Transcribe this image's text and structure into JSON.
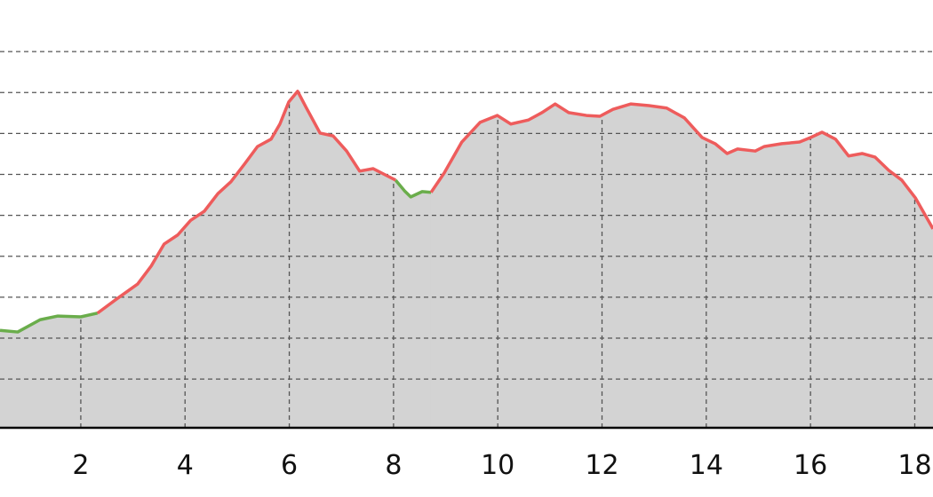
{
  "chart_data": {
    "type": "line",
    "x": [
      0.45,
      0.79,
      1.22,
      1.56,
      2.0,
      2.32,
      2.66,
      3.09,
      3.35,
      3.6,
      3.86,
      4.11,
      4.37,
      4.63,
      4.88,
      5.14,
      5.39,
      5.65,
      5.82,
      5.99,
      6.16,
      6.33,
      6.59,
      6.84,
      7.1,
      7.35,
      7.61,
      7.87,
      8.04,
      8.21,
      8.33,
      8.55,
      8.72,
      8.97,
      9.31,
      9.66,
      9.99,
      10.25,
      10.59,
      10.85,
      11.1,
      11.36,
      11.7,
      11.96,
      12.21,
      12.55,
      12.9,
      13.24,
      13.58,
      13.92,
      14.17,
      14.4,
      14.6,
      14.94,
      15.11,
      15.45,
      15.79,
      16.0,
      16.22,
      16.48,
      16.73,
      16.99,
      17.24,
      17.5,
      17.75,
      18.01,
      18.35
    ],
    "series": [
      {
        "color": "#6aad4b",
        "values": [
          2.19,
          2.15,
          2.45,
          2.54,
          2.52,
          2.61,
          null,
          null,
          null,
          null,
          null,
          null,
          null,
          null,
          null,
          null,
          null,
          null,
          null,
          null,
          null,
          null,
          null,
          null,
          null,
          null,
          null,
          null,
          5.86,
          5.6,
          5.45,
          5.58,
          5.56,
          null,
          null,
          null,
          null,
          null,
          null,
          null,
          null,
          null,
          null,
          null,
          null,
          null,
          null,
          null,
          null,
          null,
          null,
          null,
          null,
          null,
          null,
          null,
          null,
          null,
          null,
          null,
          null,
          null,
          null,
          null,
          null,
          null,
          null
        ]
      },
      {
        "color": "#ee5c5c",
        "values": [
          null,
          null,
          null,
          null,
          null,
          2.61,
          2.93,
          3.32,
          3.76,
          4.3,
          4.52,
          4.88,
          5.1,
          5.53,
          5.82,
          6.25,
          6.68,
          6.86,
          7.23,
          7.77,
          8.03,
          7.62,
          7.01,
          6.94,
          6.57,
          6.08,
          6.14,
          5.97,
          5.86,
          null,
          null,
          null,
          5.56,
          6.03,
          6.79,
          7.27,
          7.44,
          7.23,
          7.33,
          7.51,
          7.72,
          7.51,
          7.44,
          7.42,
          7.59,
          7.72,
          7.68,
          7.62,
          7.38,
          6.9,
          6.75,
          6.51,
          6.62,
          6.57,
          6.68,
          6.75,
          6.79,
          6.9,
          7.03,
          6.86,
          6.45,
          6.51,
          6.42,
          6.1,
          5.86,
          5.43,
          4.67
        ]
      }
    ],
    "fill": "#d3d3d3",
    "xlim": [
      0.45,
      18.35
    ],
    "ylim": [
      -0.19,
      10.26
    ],
    "xticks": [
      2,
      4,
      6,
      8,
      10,
      12,
      14,
      16,
      18
    ],
    "yticks": [
      1,
      2,
      3,
      4,
      5,
      6,
      7,
      8,
      9
    ],
    "grid": true
  }
}
